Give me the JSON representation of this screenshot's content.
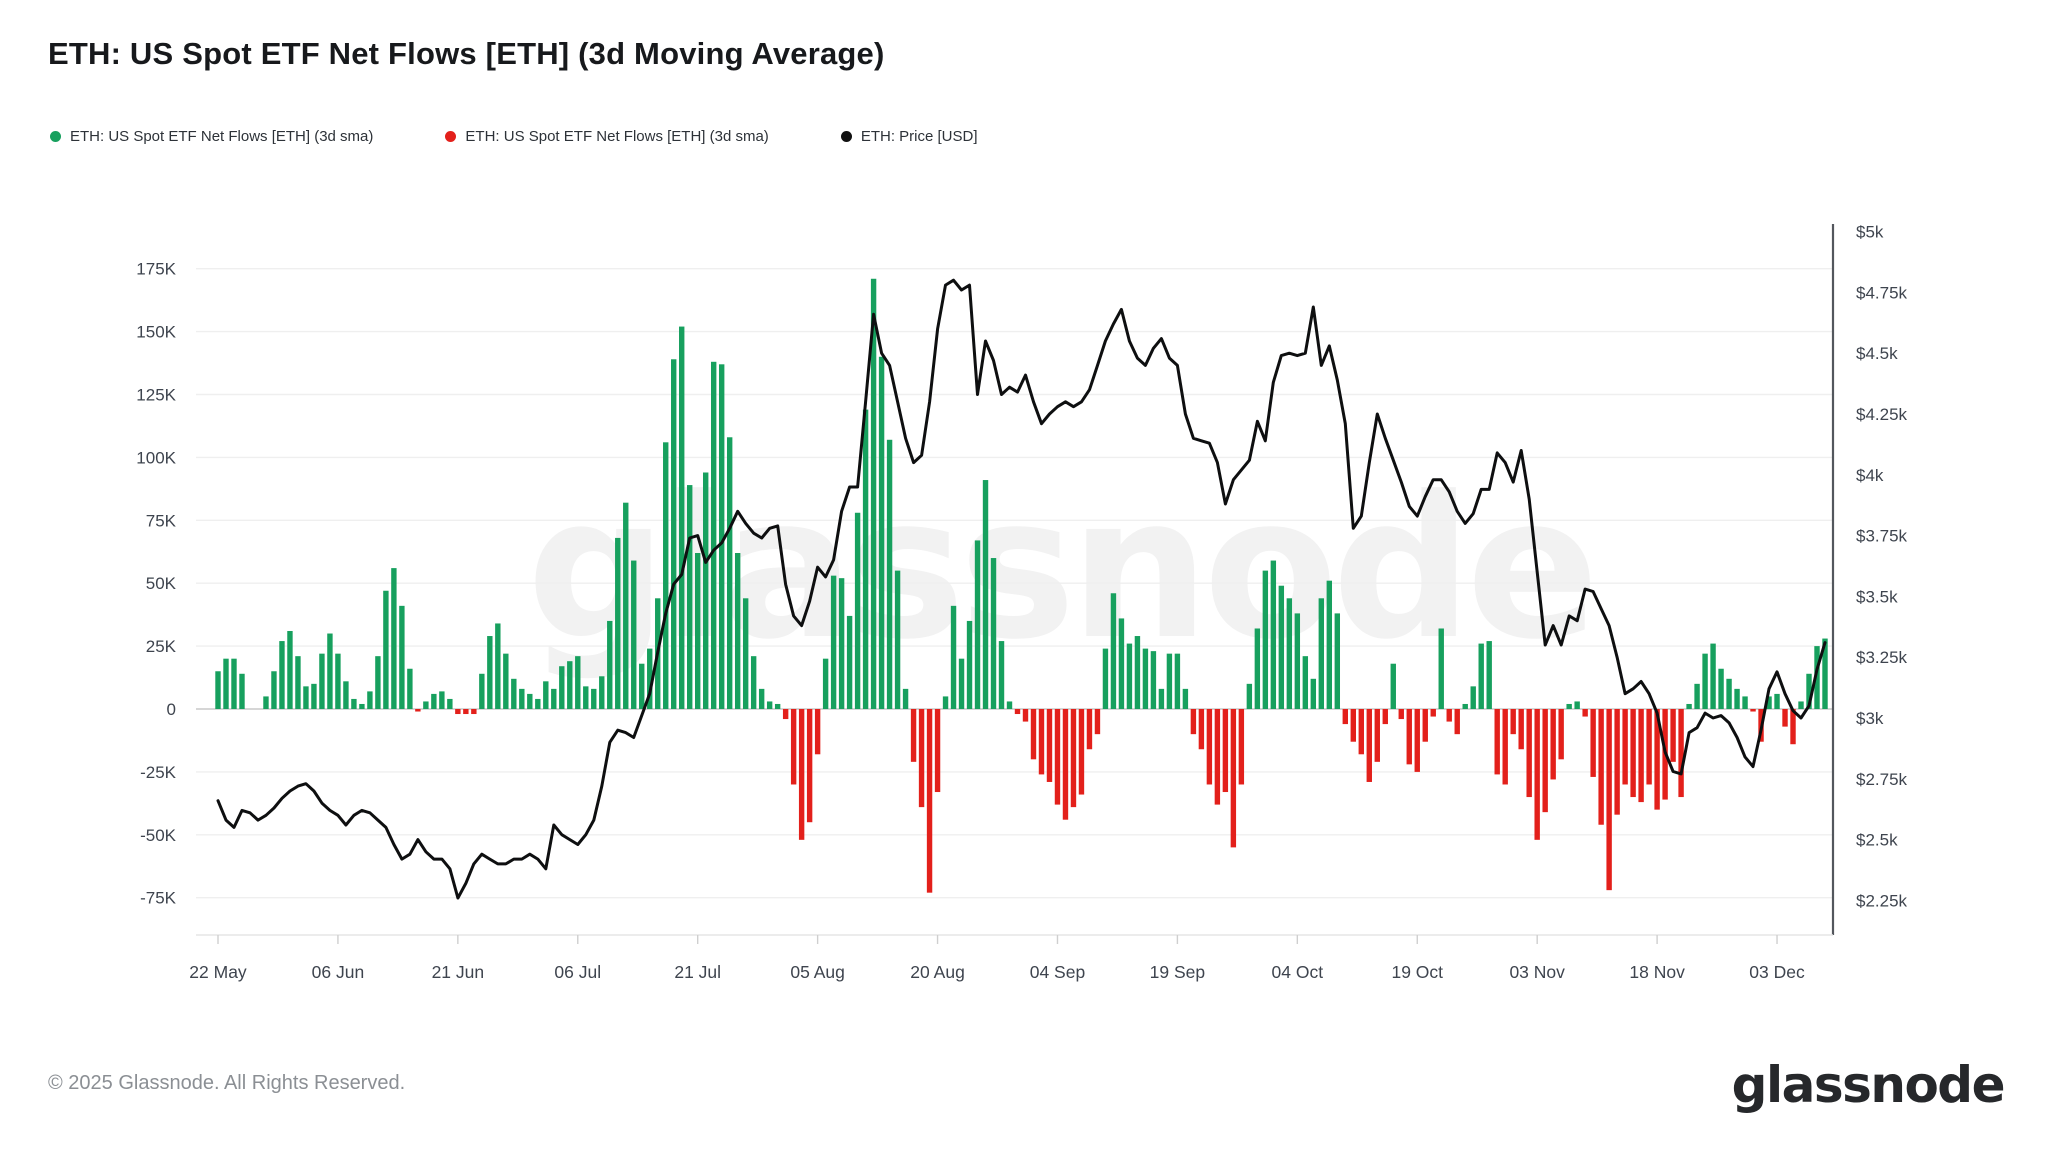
{
  "title": "ETH: US Spot ETF Net Flows [ETH] (3d Moving Average)",
  "watermark": "glassnode",
  "footer": {
    "copyright": "© 2025 Glassnode. All Rights Reserved.",
    "logo": "glassnode"
  },
  "legend": [
    {
      "label": "ETH: US Spot ETF Net Flows [ETH] (3d sma)",
      "color": "#17a05e"
    },
    {
      "label": "ETH: US Spot ETF Net Flows [ETH] (3d sma)",
      "color": "#e3201b"
    },
    {
      "label": "ETH: Price [USD]",
      "color": "#111111"
    }
  ],
  "colors": {
    "bar_positive": "#17a05e",
    "bar_negative": "#e3201b",
    "price_line": "#0e0f10",
    "grid": "#efefef",
    "zero_line": "#c8c8c8",
    "right_axis_line": "#53575d",
    "axis_label": "#3e444e",
    "tick": "#cfcfcf",
    "bottom_border": "#e6e6e6"
  },
  "y_axis_left": {
    "labels": [
      "175K",
      "150K",
      "125K",
      "100K",
      "75K",
      "50K",
      "25K",
      "0",
      "-25K",
      "-50K",
      "-75K"
    ],
    "values_k": [
      175,
      150,
      125,
      100,
      75,
      50,
      25,
      0,
      -25,
      -50,
      -75
    ]
  },
  "y_axis_right": {
    "labels": [
      "$5k",
      "$4.75k",
      "$4.5k",
      "$4.25k",
      "$4k",
      "$3.75k",
      "$3.5k",
      "$3.25k",
      "$3k",
      "$2.75k",
      "$2.5k",
      "$2.25k"
    ],
    "values_usd": [
      5000,
      4750,
      4500,
      4250,
      4000,
      3750,
      3500,
      3250,
      3000,
      2750,
      2500,
      2250
    ]
  },
  "x_axis": {
    "ticks": [
      {
        "label": "22 May",
        "day_index": 0
      },
      {
        "label": "06 Jun",
        "day_index": 15
      },
      {
        "label": "21 Jun",
        "day_index": 30
      },
      {
        "label": "06 Jul",
        "day_index": 45
      },
      {
        "label": "21 Jul",
        "day_index": 60
      },
      {
        "label": "05 Aug",
        "day_index": 75
      },
      {
        "label": "20 Aug",
        "day_index": 90
      },
      {
        "label": "04 Sep",
        "day_index": 105
      },
      {
        "label": "19 Sep",
        "day_index": 120
      },
      {
        "label": "04 Oct",
        "day_index": 135
      },
      {
        "label": "19 Oct",
        "day_index": 150
      },
      {
        "label": "03 Nov",
        "day_index": 165
      },
      {
        "label": "18 Nov",
        "day_index": 180
      },
      {
        "label": "03 Dec",
        "day_index": 195
      }
    ]
  },
  "chart_data": {
    "type": "combo-bar-line",
    "start_date": "2025-05-22",
    "days": 202,
    "flow_axis_range_k": [
      -90,
      190
    ],
    "price_axis_range_usd": [
      2110,
      5010
    ],
    "series": [
      {
        "name": "ETH: US Spot ETF Net Flows [ETH] (3d sma)",
        "type": "bar",
        "unit": "thousand ETH",
        "values_k": [
          15,
          20,
          20,
          14,
          0,
          0,
          5,
          15,
          27,
          31,
          21,
          9,
          10,
          22,
          30,
          22,
          11,
          4,
          2,
          7,
          21,
          47,
          56,
          41,
          16,
          -1,
          3,
          6,
          7,
          4,
          -2,
          -2,
          -2,
          14,
          29,
          34,
          22,
          12,
          8,
          6,
          4,
          11,
          8,
          17,
          19,
          21,
          9,
          8,
          13,
          35,
          68,
          82,
          59,
          18,
          24,
          44,
          106,
          139,
          152,
          89,
          62,
          94,
          138,
          137,
          108,
          62,
          44,
          21,
          8,
          3,
          2,
          -4,
          -30,
          -52,
          -45,
          -18,
          20,
          53,
          52,
          37,
          78,
          119,
          171,
          140,
          107,
          55,
          8,
          -21,
          -39,
          -73,
          -33,
          5,
          41,
          20,
          35,
          67,
          91,
          60,
          27,
          3,
          -2,
          -5,
          -20,
          -26,
          -29,
          -38,
          -44,
          -39,
          -34,
          -16,
          -10,
          24,
          46,
          36,
          26,
          29,
          24,
          23,
          8,
          22,
          22,
          8,
          -10,
          -16,
          -30,
          -38,
          -33,
          -55,
          -30,
          10,
          32,
          55,
          59,
          49,
          44,
          38,
          21,
          12,
          44,
          51,
          38,
          -6,
          -13,
          -18,
          -29,
          -21,
          -6,
          18,
          -4,
          -22,
          -25,
          -13,
          -3,
          32,
          -5,
          -10,
          2,
          9,
          26,
          27,
          -26,
          -30,
          -10,
          -16,
          -35,
          -52,
          -41,
          -28,
          -20,
          2,
          3,
          -3,
          -27,
          -46,
          -72,
          -42,
          -30,
          -35,
          -37,
          -30,
          -40,
          -36,
          -21,
          -35,
          2,
          10,
          22,
          26,
          16,
          12,
          8,
          5,
          -1,
          -13,
          5,
          6,
          -7,
          -14,
          3,
          14,
          25,
          28
        ]
      },
      {
        "name": "ETH: Price [USD]",
        "type": "line",
        "unit": "USD",
        "values_usd": [
          2660,
          2580,
          2550,
          2620,
          2610,
          2580,
          2600,
          2630,
          2670,
          2700,
          2720,
          2730,
          2700,
          2650,
          2620,
          2600,
          2560,
          2600,
          2620,
          2610,
          2580,
          2550,
          2480,
          2420,
          2440,
          2500,
          2450,
          2420,
          2420,
          2380,
          2260,
          2320,
          2400,
          2440,
          2420,
          2400,
          2400,
          2420,
          2420,
          2440,
          2420,
          2380,
          2560,
          2520,
          2500,
          2480,
          2520,
          2580,
          2720,
          2900,
          2950,
          2940,
          2920,
          3010,
          3100,
          3270,
          3430,
          3550,
          3590,
          3740,
          3750,
          3640,
          3690,
          3720,
          3780,
          3850,
          3800,
          3760,
          3740,
          3780,
          3790,
          3550,
          3420,
          3380,
          3480,
          3620,
          3580,
          3650,
          3850,
          3950,
          3950,
          4300,
          4660,
          4500,
          4450,
          4300,
          4150,
          4050,
          4080,
          4300,
          4600,
          4780,
          4800,
          4760,
          4780,
          4330,
          4550,
          4470,
          4330,
          4360,
          4340,
          4410,
          4300,
          4210,
          4250,
          4280,
          4300,
          4280,
          4300,
          4350,
          4450,
          4550,
          4620,
          4680,
          4550,
          4480,
          4450,
          4520,
          4560,
          4480,
          4450,
          4250,
          4150,
          4140,
          4130,
          4050,
          3880,
          3980,
          4020,
          4060,
          4220,
          4140,
          4380,
          4490,
          4500,
          4490,
          4500,
          4690,
          4450,
          4530,
          4390,
          4210,
          3780,
          3830,
          4050,
          4250,
          4150,
          4060,
          3970,
          3870,
          3830,
          3910,
          3980,
          3980,
          3930,
          3850,
          3800,
          3840,
          3940,
          3940,
          4090,
          4050,
          3970,
          4100,
          3900,
          3600,
          3300,
          3380,
          3300,
          3420,
          3400,
          3530,
          3520,
          3450,
          3380,
          3250,
          3100,
          3120,
          3150,
          3100,
          3020,
          2860,
          2780,
          2770,
          2940,
          2960,
          3020,
          3000,
          3010,
          2980,
          2920,
          2840,
          2800,
          2950,
          3120,
          3190,
          3100,
          3030,
          3000,
          3050,
          3200,
          3310
        ]
      }
    ]
  }
}
